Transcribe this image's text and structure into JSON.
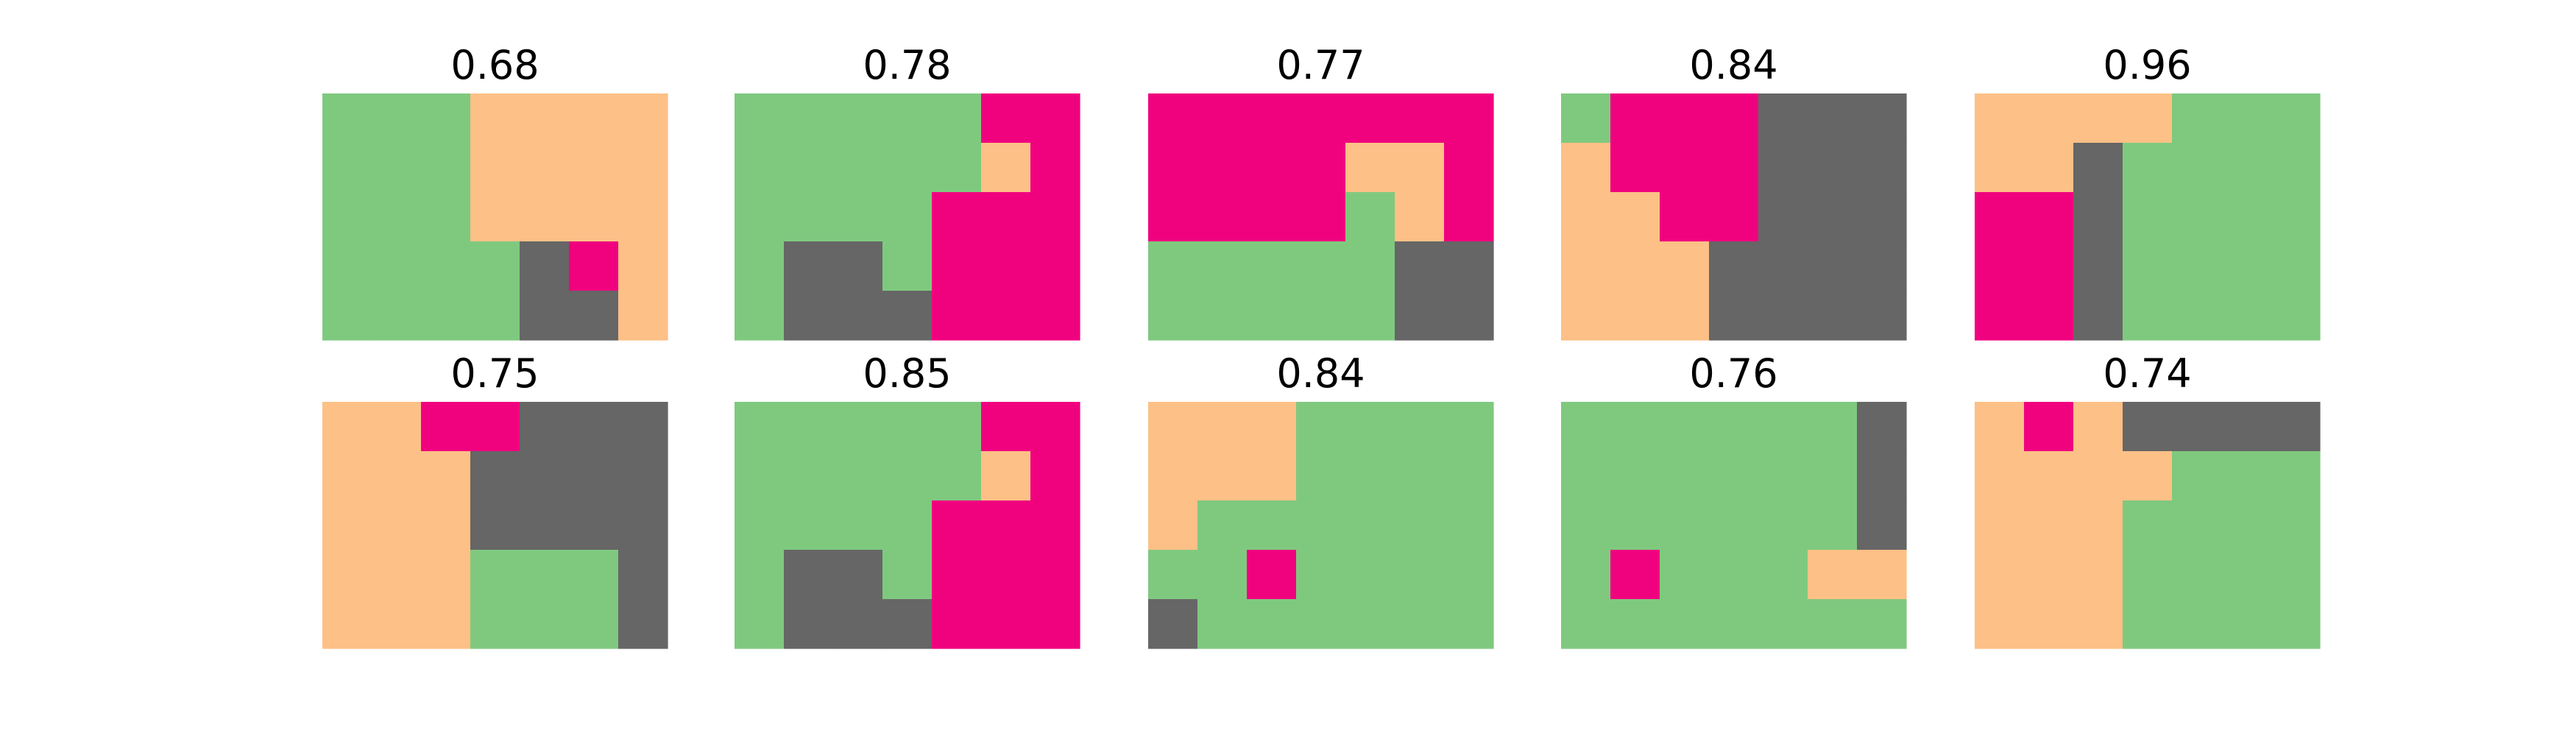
{
  "colors": {
    "0": "#7fc97f",
    "1": "#fdc086",
    "2": "#f0027f",
    "3": "#666666"
  },
  "chart_data": [
    {
      "type": "heatmap",
      "title": "0.68",
      "cells": [
        [
          0,
          0,
          0,
          1,
          1,
          1,
          1
        ],
        [
          0,
          0,
          0,
          1,
          1,
          1,
          1
        ],
        [
          0,
          0,
          0,
          1,
          1,
          1,
          1
        ],
        [
          0,
          0,
          0,
          0,
          3,
          2,
          1
        ],
        [
          0,
          0,
          0,
          0,
          3,
          3,
          1
        ]
      ]
    },
    {
      "type": "heatmap",
      "title": "0.78",
      "cells": [
        [
          0,
          0,
          0,
          0,
          0,
          2,
          2
        ],
        [
          0,
          0,
          0,
          0,
          0,
          1,
          2
        ],
        [
          0,
          0,
          0,
          0,
          2,
          2,
          2
        ],
        [
          0,
          3,
          3,
          0,
          2,
          2,
          2
        ],
        [
          0,
          3,
          3,
          3,
          2,
          2,
          2
        ]
      ]
    },
    {
      "type": "heatmap",
      "title": "0.77",
      "cells": [
        [
          2,
          2,
          2,
          2,
          2,
          2,
          2
        ],
        [
          2,
          2,
          2,
          2,
          1,
          1,
          2
        ],
        [
          2,
          2,
          2,
          2,
          0,
          1,
          2
        ],
        [
          0,
          0,
          0,
          0,
          0,
          3,
          3
        ],
        [
          0,
          0,
          0,
          0,
          0,
          3,
          3
        ]
      ]
    },
    {
      "type": "heatmap",
      "title": "0.84",
      "cells": [
        [
          0,
          2,
          2,
          2,
          3,
          3,
          3
        ],
        [
          1,
          2,
          2,
          2,
          3,
          3,
          3
        ],
        [
          1,
          1,
          2,
          2,
          3,
          3,
          3
        ],
        [
          1,
          1,
          1,
          3,
          3,
          3,
          3
        ],
        [
          1,
          1,
          1,
          3,
          3,
          3,
          3
        ]
      ]
    },
    {
      "type": "heatmap",
      "title": "0.96",
      "cells": [
        [
          1,
          1,
          1,
          1,
          0,
          0,
          0
        ],
        [
          1,
          1,
          3,
          0,
          0,
          0,
          0
        ],
        [
          2,
          2,
          3,
          0,
          0,
          0,
          0
        ],
        [
          2,
          2,
          3,
          0,
          0,
          0,
          0
        ],
        [
          2,
          2,
          3,
          0,
          0,
          0,
          0
        ]
      ]
    },
    {
      "type": "heatmap",
      "title": "0.75",
      "cells": [
        [
          1,
          1,
          2,
          2,
          3,
          3,
          3
        ],
        [
          1,
          1,
          1,
          3,
          3,
          3,
          3
        ],
        [
          1,
          1,
          1,
          3,
          3,
          3,
          3
        ],
        [
          1,
          1,
          1,
          0,
          0,
          0,
          3
        ],
        [
          1,
          1,
          1,
          0,
          0,
          0,
          3
        ]
      ]
    },
    {
      "type": "heatmap",
      "title": "0.85",
      "cells": [
        [
          0,
          0,
          0,
          0,
          0,
          2,
          2
        ],
        [
          0,
          0,
          0,
          0,
          0,
          1,
          2
        ],
        [
          0,
          0,
          0,
          0,
          2,
          2,
          2
        ],
        [
          0,
          3,
          3,
          0,
          2,
          2,
          2
        ],
        [
          0,
          3,
          3,
          3,
          2,
          2,
          2
        ]
      ]
    },
    {
      "type": "heatmap",
      "title": "0.84",
      "cells": [
        [
          1,
          1,
          1,
          0,
          0,
          0,
          0
        ],
        [
          1,
          1,
          1,
          0,
          0,
          0,
          0
        ],
        [
          1,
          0,
          0,
          0,
          0,
          0,
          0
        ],
        [
          0,
          0,
          2,
          0,
          0,
          0,
          0
        ],
        [
          3,
          0,
          0,
          0,
          0,
          0,
          0
        ]
      ]
    },
    {
      "type": "heatmap",
      "title": "0.76",
      "cells": [
        [
          0,
          0,
          0,
          0,
          0,
          0,
          3
        ],
        [
          0,
          0,
          0,
          0,
          0,
          0,
          3
        ],
        [
          0,
          0,
          0,
          0,
          0,
          0,
          3
        ],
        [
          0,
          2,
          0,
          0,
          0,
          1,
          1
        ],
        [
          0,
          0,
          0,
          0,
          0,
          0,
          0
        ]
      ]
    },
    {
      "type": "heatmap",
      "title": "0.74",
      "cells": [
        [
          1,
          2,
          1,
          3,
          3,
          3,
          3
        ],
        [
          1,
          1,
          1,
          1,
          0,
          0,
          0
        ],
        [
          1,
          1,
          1,
          0,
          0,
          0,
          0
        ],
        [
          1,
          1,
          1,
          0,
          0,
          0,
          0
        ],
        [
          1,
          1,
          1,
          0,
          0,
          0,
          0
        ]
      ]
    }
  ]
}
